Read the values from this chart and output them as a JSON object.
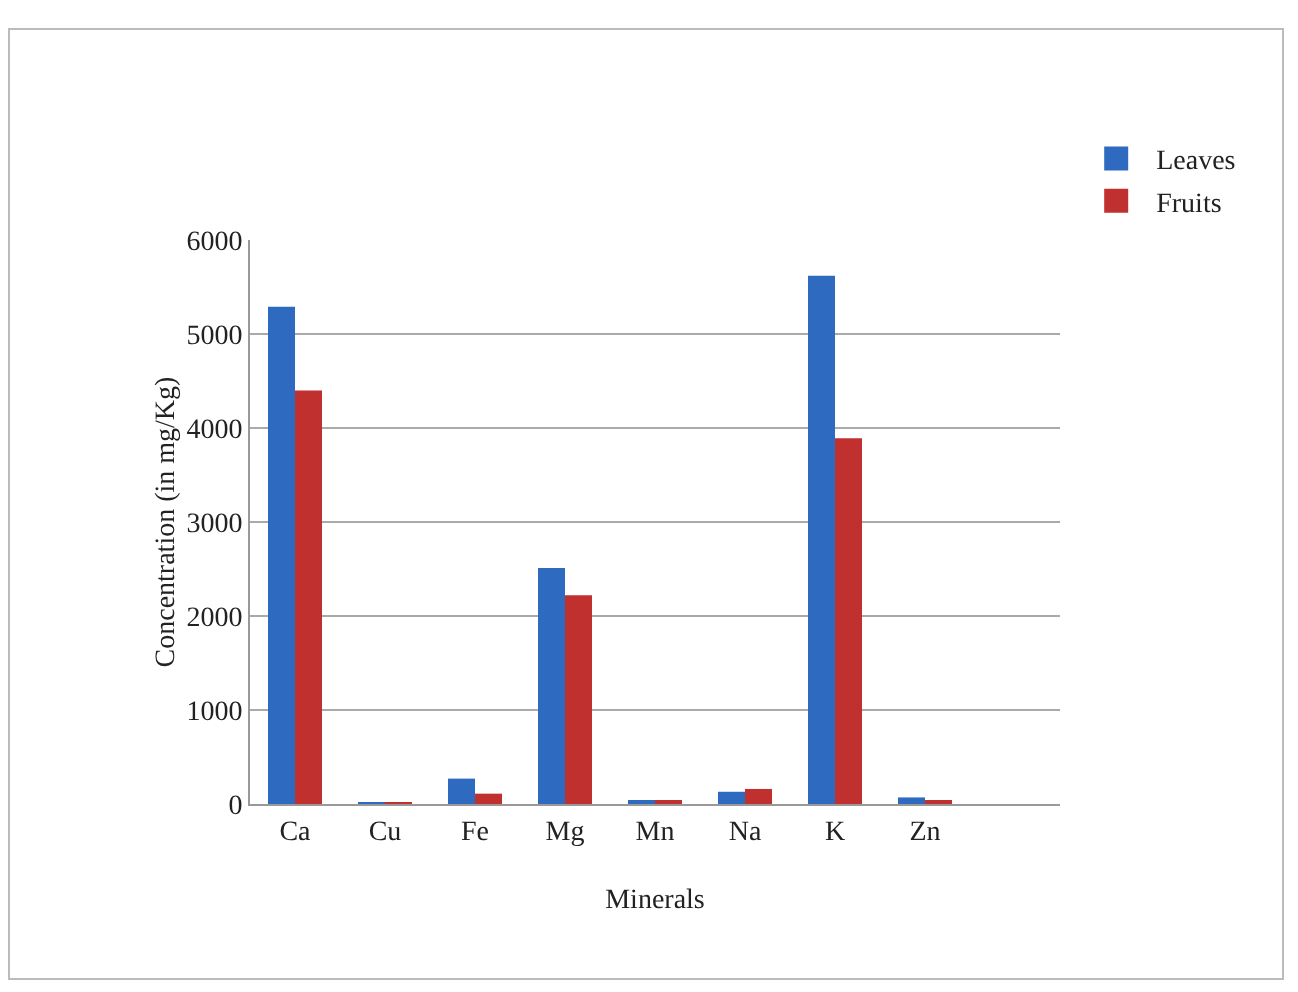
{
  "chart_data": {
    "type": "bar",
    "xlabel": "Minerals",
    "ylabel": "Concentration (in mg/Kg)",
    "categories": [
      "Ca",
      "Cu",
      "Fe",
      "Mg",
      "Mn",
      "Na",
      "K",
      "Zn",
      null
    ],
    "series": [
      {
        "name": "Leaves",
        "color": "#2e6bc0",
        "values": [
          5290,
          10,
          270,
          2510,
          40,
          130,
          5620,
          70,
          null
        ]
      },
      {
        "name": "Fruits",
        "color": "#c0302e",
        "values": [
          4400,
          10,
          110,
          2220,
          30,
          160,
          3890,
          30,
          null
        ]
      }
    ],
    "ylim": [
      0,
      6000
    ],
    "yticks": [
      0,
      1000,
      2000,
      3000,
      4000,
      5000,
      6000
    ],
    "grid": "y",
    "legend": "top right"
  }
}
